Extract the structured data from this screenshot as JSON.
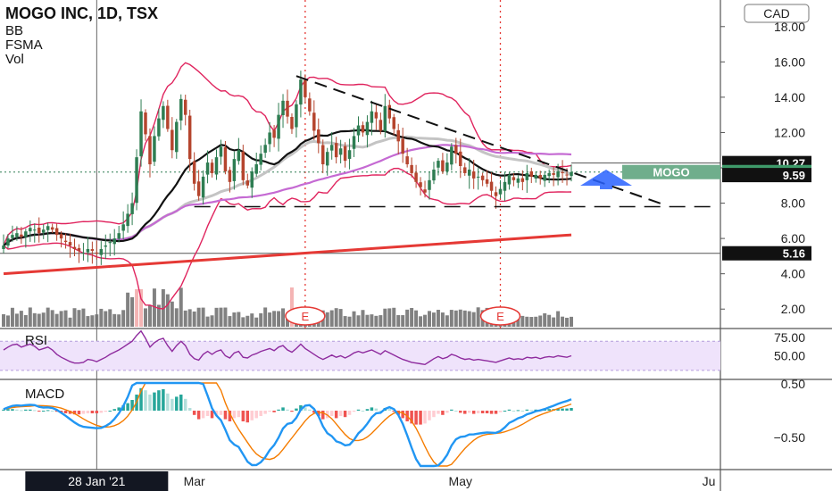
{
  "header": {
    "title": "MOGO INC, 1D, TSX",
    "indicators": [
      "BB",
      "FSMA",
      "Vol"
    ],
    "currency": "CAD"
  },
  "chart_data": [
    {
      "type": "candlestick",
      "panel": "price",
      "y_ticks": [
        "18.00",
        "16.00",
        "14.00",
        "12.00",
        "10.00",
        "8.00",
        "6.00",
        "4.00",
        "2.00"
      ],
      "y_tick_values": [
        18,
        16,
        14,
        12,
        10,
        8,
        6,
        4,
        2
      ],
      "ylim": [
        1.0,
        19.0
      ],
      "x_ticks": [
        "Mar",
        "May",
        "Ju"
      ],
      "x_tick_bars": [
        43,
        103,
        159
      ],
      "crosshair_date_label": "28 Jan '21",
      "crosshair_bar": 21,
      "bars": 129,
      "closes": [
        5.6,
        6.0,
        6.2,
        6.3,
        6.1,
        6.4,
        6.6,
        6.5,
        6.3,
        6.5,
        6.7,
        6.5,
        6.2,
        6.0,
        5.8,
        5.6,
        5.4,
        5.3,
        5.2,
        5.4,
        5.3,
        5.2,
        5.4,
        5.6,
        5.8,
        6.0,
        6.3,
        6.8,
        7.4,
        8.0,
        10.6,
        13.2,
        11.9,
        10.2,
        11.8,
        12.8,
        13.5,
        12.2,
        11.0,
        12.6,
        13.9,
        13.0,
        10.5,
        9.1,
        8.4,
        9.5,
        10.3,
        9.7,
        10.6,
        11.2,
        9.8,
        9.2,
        10.5,
        11.0,
        9.3,
        9.0,
        9.8,
        10.2,
        10.8,
        11.3,
        12.0,
        11.7,
        13.0,
        13.8,
        12.9,
        12.2,
        13.6,
        15.0,
        14.0,
        13.2,
        12.1,
        11.4,
        10.2,
        10.9,
        11.3,
        10.6,
        11.1,
        10.4,
        11.0,
        11.8,
        12.4,
        12.0,
        12.6,
        13.2,
        12.8,
        12.1,
        13.5,
        12.8,
        12.2,
        11.5,
        10.8,
        10.2,
        9.7,
        9.2,
        8.9,
        8.6,
        9.3,
        9.9,
        10.4,
        9.8,
        10.3,
        11.2,
        10.8,
        10.1,
        9.7,
        9.9,
        9.4,
        9.5,
        9.3,
        9.1,
        8.7,
        8.4,
        8.8,
        9.2,
        9.6,
        9.3,
        9.4,
        9.2,
        9.7,
        9.5,
        9.6,
        9.4,
        9.6,
        9.7,
        9.6,
        9.8,
        9.7,
        9.6,
        9.76
      ],
      "level_lines": [
        {
          "label": "10.27",
          "value": 10.27
        },
        {
          "label": "9.59",
          "value": 9.59
        },
        {
          "label": "5.16",
          "value": 5.16
        }
      ],
      "last_price": {
        "label": "9.76",
        "symbol": "MOGO",
        "value": 9.76
      },
      "support_level": 7.8,
      "resistance_trend": {
        "from": [
          66,
          15.2
        ],
        "to": [
          135,
          7.9
        ]
      },
      "earnings_markers": [
        {
          "label": "E",
          "bar": 68
        },
        {
          "label": "E",
          "bar": 112
        }
      ],
      "sma_long": {
        "from": 4.0,
        "to": 6.2
      },
      "colors": {
        "up": "#2e7d52",
        "down": "#b5452e",
        "bb": "#e0245e",
        "sma_black": "#111111",
        "sma_grey": "#c4c4c4",
        "sma_purple": "#c56ad3",
        "sma_red": "#e53935",
        "volume": "#6b6b6b",
        "volume_spike": "#f2a7a7",
        "arrow": "#2962ff"
      }
    },
    {
      "type": "line",
      "panel": "rsi",
      "title": "RSI",
      "y_ticks": [
        "75.00",
        "50.00"
      ],
      "y_tick_values": [
        75,
        50
      ],
      "ylim": [
        20,
        85
      ],
      "band": [
        30,
        70
      ],
      "values": [
        58,
        62,
        65,
        66,
        62,
        64,
        66,
        63,
        58,
        60,
        62,
        58,
        52,
        48,
        45,
        42,
        40,
        40,
        41,
        45,
        44,
        42,
        45,
        48,
        52,
        55,
        58,
        62,
        66,
        70,
        78,
        84,
        74,
        62,
        68,
        72,
        74,
        64,
        56,
        64,
        70,
        64,
        52,
        46,
        44,
        52,
        56,
        52,
        56,
        58,
        50,
        47,
        54,
        56,
        48,
        47,
        51,
        53,
        56,
        58,
        60,
        57,
        62,
        64,
        58,
        55,
        60,
        66,
        60,
        56,
        52,
        48,
        45,
        48,
        51,
        48,
        50,
        47,
        50,
        54,
        56,
        54,
        56,
        58,
        55,
        52,
        57,
        54,
        51,
        48,
        45,
        43,
        41,
        40,
        39,
        38,
        42,
        46,
        49,
        46,
        48,
        52,
        50,
        47,
        45,
        46,
        44,
        45,
        44,
        43,
        42,
        41,
        43,
        45,
        47,
        45,
        46,
        45,
        48,
        47,
        48,
        46,
        48,
        49,
        48,
        50,
        49,
        48,
        50
      ],
      "color": "#8e2b9e",
      "band_color": "#efe3fb"
    },
    {
      "type": "histogram",
      "panel": "macd",
      "title": "MACD",
      "y_ticks": [
        "0.50",
        "−0.50"
      ],
      "y_tick_values": [
        0.5,
        -0.5
      ],
      "ylim": [
        -0.75,
        0.75
      ],
      "histogram": [
        0.02,
        0.03,
        0.03,
        0.02,
        0.01,
        0.02,
        0.02,
        0.01,
        -0.01,
        0.0,
        0.01,
        0.0,
        -0.02,
        -0.04,
        -0.05,
        -0.06,
        -0.07,
        -0.07,
        -0.06,
        -0.05,
        -0.05,
        -0.05,
        -0.04,
        -0.02,
        0.0,
        0.03,
        0.06,
        0.1,
        0.14,
        0.2,
        0.3,
        0.42,
        0.38,
        0.3,
        0.34,
        0.38,
        0.4,
        0.32,
        0.22,
        0.26,
        0.3,
        0.22,
        0.05,
        -0.08,
        -0.16,
        -0.14,
        -0.1,
        -0.14,
        -0.1,
        -0.08,
        -0.16,
        -0.2,
        -0.14,
        -0.12,
        -0.2,
        -0.22,
        -0.18,
        -0.14,
        -0.1,
        -0.06,
        -0.02,
        -0.03,
        0.02,
        0.06,
        0.02,
        -0.02,
        0.04,
        0.1,
        0.06,
        0.02,
        -0.04,
        -0.1,
        -0.16,
        -0.14,
        -0.1,
        -0.14,
        -0.1,
        -0.12,
        -0.08,
        -0.02,
        0.02,
        0.0,
        0.03,
        0.06,
        0.04,
        0.0,
        0.05,
        0.03,
        -0.02,
        -0.08,
        -0.14,
        -0.2,
        -0.24,
        -0.26,
        -0.26,
        -0.24,
        -0.18,
        -0.12,
        -0.06,
        -0.08,
        -0.04,
        0.02,
        0.0,
        -0.04,
        -0.06,
        -0.04,
        -0.06,
        -0.05,
        -0.05,
        -0.05,
        -0.06,
        -0.06,
        -0.03,
        0.0,
        0.02,
        0.0,
        0.01,
        0.0,
        0.02,
        0.01,
        0.02,
        0.01,
        0.02,
        0.03,
        0.03,
        0.04,
        0.04,
        0.04,
        0.05
      ],
      "macd_color": "#2196f3",
      "signal_color": "#f57c00",
      "hist_colors": {
        "pos_strong": "#26a69a",
        "pos_weak": "#b2dfdb",
        "neg_strong": "#ef5350",
        "neg_weak": "#ffcdd2"
      }
    }
  ]
}
